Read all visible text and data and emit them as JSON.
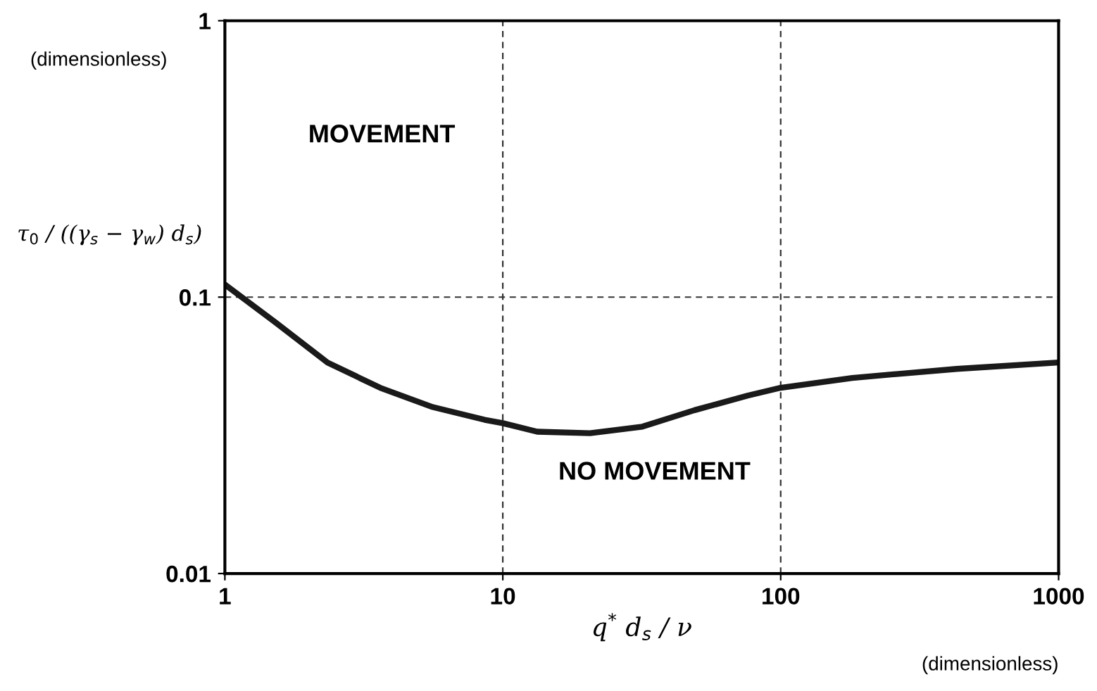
{
  "chart_data": {
    "type": "line",
    "xlabel": "q$^{*}$ d$_{s}$ / ν",
    "ylabel": "τ$_{0}$ / ((γ$_{s}$ − γ$_{w}$) d$_{s}$)",
    "log": "xy",
    "grid": true,
    "xlim": [
      1,
      1000
    ],
    "ylim": [
      0.01,
      1
    ],
    "xticks": [
      1,
      10,
      100,
      1000
    ],
    "yticks": [
      0.01,
      0.1,
      1
    ],
    "series": [
      {
        "color": "#1a1a1a",
        "x": [
          1,
          1.52,
          2.34,
          3.62,
          5.6,
          8.6,
          10,
          13.3,
          20.6,
          31.8,
          49,
          76,
          100,
          181,
          279,
          430,
          1000
        ],
        "values": [
          0.111,
          0.081,
          0.058,
          0.047,
          0.04,
          0.036,
          0.035,
          0.0326,
          0.0322,
          0.034,
          0.039,
          0.044,
          0.047,
          0.051,
          0.053,
          0.055,
          0.058
        ]
      }
    ],
    "annotations": [
      "(dimensionless)",
      "(dimensionless)",
      "MOVEMENT",
      "NO MOVEMENT"
    ]
  }
}
